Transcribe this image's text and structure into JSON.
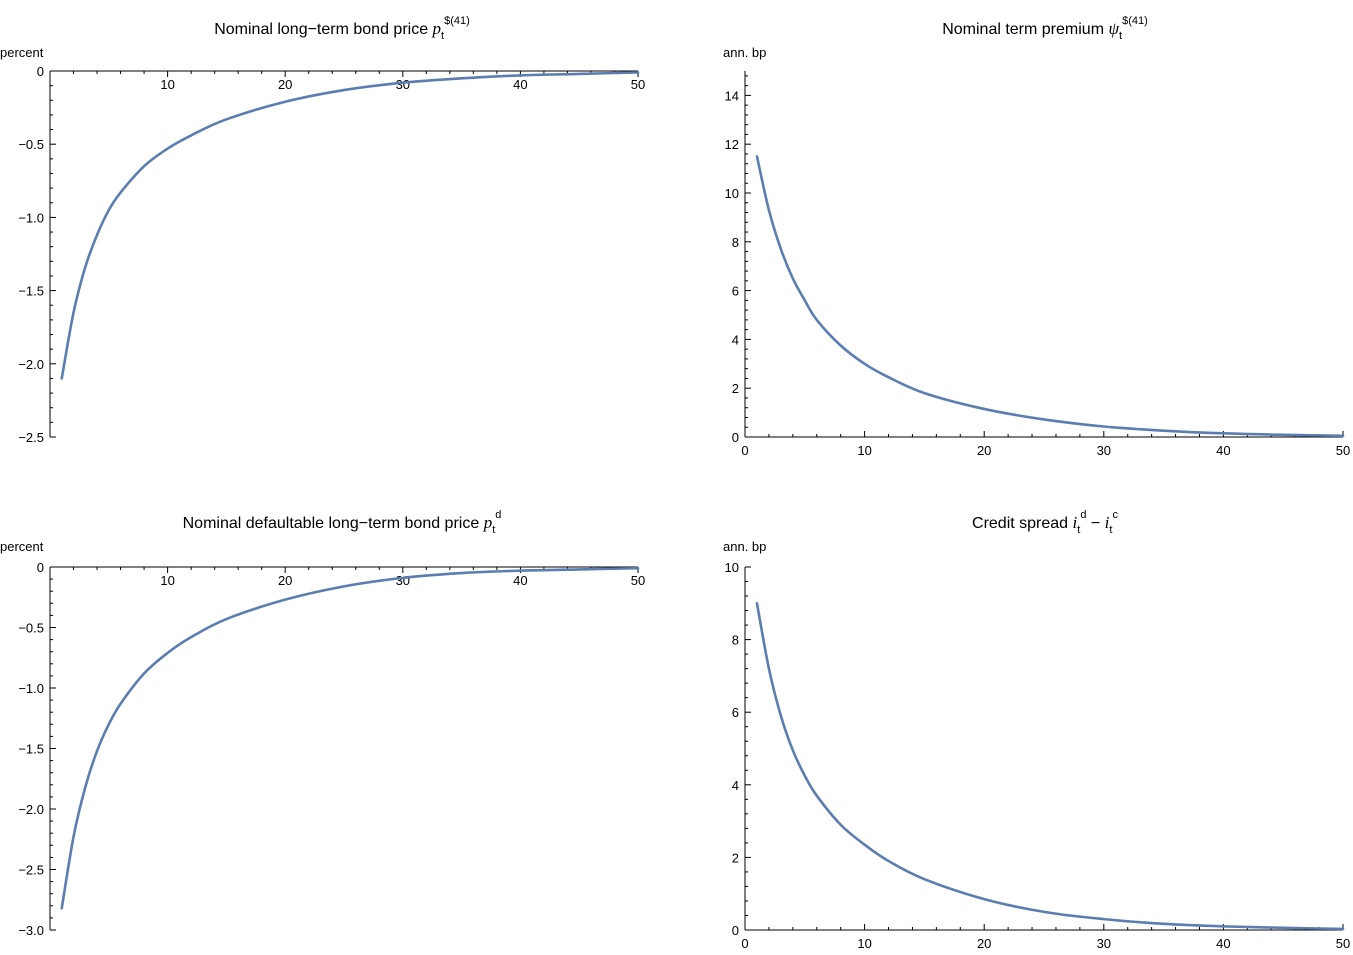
{
  "chart_data": [
    {
      "type": "line",
      "title": {
        "prefix": "Nominal long−term bond price ",
        "symbol": "p",
        "sub": "t",
        "sup": "$(41)"
      },
      "ylabel": "percent",
      "xlim": [
        0,
        50
      ],
      "ylim": [
        -2.5,
        0
      ],
      "x_axis_at": "top",
      "xticks": [
        10,
        20,
        30,
        40,
        50
      ],
      "yticks": [
        0,
        -0.5,
        -1.0,
        -1.5,
        -2.0,
        -2.5
      ],
      "ytick_labels": [
        "0",
        "−0.5",
        "−1.0",
        "−1.5",
        "−2.0",
        "−2.5"
      ],
      "xtick_labels": [
        "10",
        "20",
        "30",
        "40",
        "50"
      ],
      "series": [
        {
          "color": "#5b7db1",
          "x": [
            1,
            2,
            3,
            4,
            5,
            6,
            8,
            10,
            12,
            15,
            20,
            25,
            30,
            35,
            40,
            45,
            50
          ],
          "y": [
            -2.1,
            -1.65,
            -1.34,
            -1.12,
            -0.95,
            -0.83,
            -0.65,
            -0.53,
            -0.44,
            -0.33,
            -0.21,
            -0.13,
            -0.08,
            -0.05,
            -0.03,
            -0.02,
            -0.01
          ]
        }
      ]
    },
    {
      "type": "line",
      "title": {
        "prefix": "Nominal term premium ",
        "symbol": "ψ",
        "sub": "t",
        "sup": "$(41)"
      },
      "ylabel": "ann. bp",
      "xlim": [
        0,
        50
      ],
      "ylim": [
        0,
        15
      ],
      "x_axis_at": "bottom",
      "xticks": [
        0,
        10,
        20,
        30,
        40,
        50
      ],
      "yticks": [
        0,
        2,
        4,
        6,
        8,
        10,
        12,
        14
      ],
      "ytick_labels": [
        "0",
        "2",
        "4",
        "6",
        "8",
        "10",
        "12",
        "14"
      ],
      "xtick_labels": [
        "0",
        "10",
        "20",
        "30",
        "40",
        "50"
      ],
      "series": [
        {
          "color": "#5b7db1",
          "x": [
            1,
            2,
            3,
            4,
            5,
            6,
            8,
            10,
            12,
            15,
            20,
            25,
            30,
            35,
            40,
            45,
            50
          ],
          "y": [
            11.5,
            9.3,
            7.7,
            6.5,
            5.6,
            4.8,
            3.75,
            3.0,
            2.45,
            1.8,
            1.15,
            0.72,
            0.43,
            0.26,
            0.15,
            0.09,
            0.05
          ]
        }
      ]
    },
    {
      "type": "line",
      "title": {
        "prefix": "Nominal defaultable long−term bond price ",
        "symbol": "p",
        "sub": "t",
        "sup": "d"
      },
      "ylabel": "percent",
      "xlim": [
        0,
        50
      ],
      "ylim": [
        -3.0,
        0
      ],
      "x_axis_at": "top",
      "xticks": [
        10,
        20,
        30,
        40,
        50
      ],
      "yticks": [
        0,
        -0.5,
        -1.0,
        -1.5,
        -2.0,
        -2.5,
        -3.0
      ],
      "ytick_labels": [
        "0",
        "−0.5",
        "−1.0",
        "−1.5",
        "−2.0",
        "−2.5",
        "−3.0"
      ],
      "xtick_labels": [
        "10",
        "20",
        "30",
        "40",
        "50"
      ],
      "series": [
        {
          "color": "#5b7db1",
          "x": [
            1,
            2,
            3,
            4,
            5,
            6,
            8,
            10,
            12,
            15,
            20,
            25,
            30,
            35,
            40,
            45,
            50
          ],
          "y": [
            -2.82,
            -2.23,
            -1.82,
            -1.52,
            -1.3,
            -1.13,
            -0.88,
            -0.71,
            -0.58,
            -0.43,
            -0.27,
            -0.16,
            -0.09,
            -0.05,
            -0.03,
            -0.02,
            -0.01
          ]
        }
      ]
    },
    {
      "type": "line",
      "title": {
        "prefix": "Credit spread ",
        "symbol": "i",
        "sub": "t",
        "sup": "d",
        "minus": " − ",
        "symbol2": "i",
        "sub2": "t",
        "sup2": "c"
      },
      "ylabel": "ann. bp",
      "xlim": [
        0,
        50
      ],
      "ylim": [
        0,
        10
      ],
      "x_axis_at": "bottom",
      "xticks": [
        0,
        10,
        20,
        30,
        40,
        50
      ],
      "yticks": [
        0,
        2,
        4,
        6,
        8,
        10
      ],
      "ytick_labels": [
        "0",
        "2",
        "4",
        "6",
        "8",
        "10"
      ],
      "xtick_labels": [
        "0",
        "10",
        "20",
        "30",
        "40",
        "50"
      ],
      "series": [
        {
          "color": "#5b7db1",
          "x": [
            1,
            2,
            3,
            4,
            5,
            6,
            8,
            10,
            12,
            15,
            20,
            25,
            30,
            35,
            40,
            45,
            50
          ],
          "y": [
            9.0,
            7.2,
            5.9,
            4.95,
            4.25,
            3.7,
            2.9,
            2.35,
            1.9,
            1.4,
            0.85,
            0.5,
            0.3,
            0.17,
            0.1,
            0.06,
            0.03
          ]
        }
      ]
    }
  ]
}
